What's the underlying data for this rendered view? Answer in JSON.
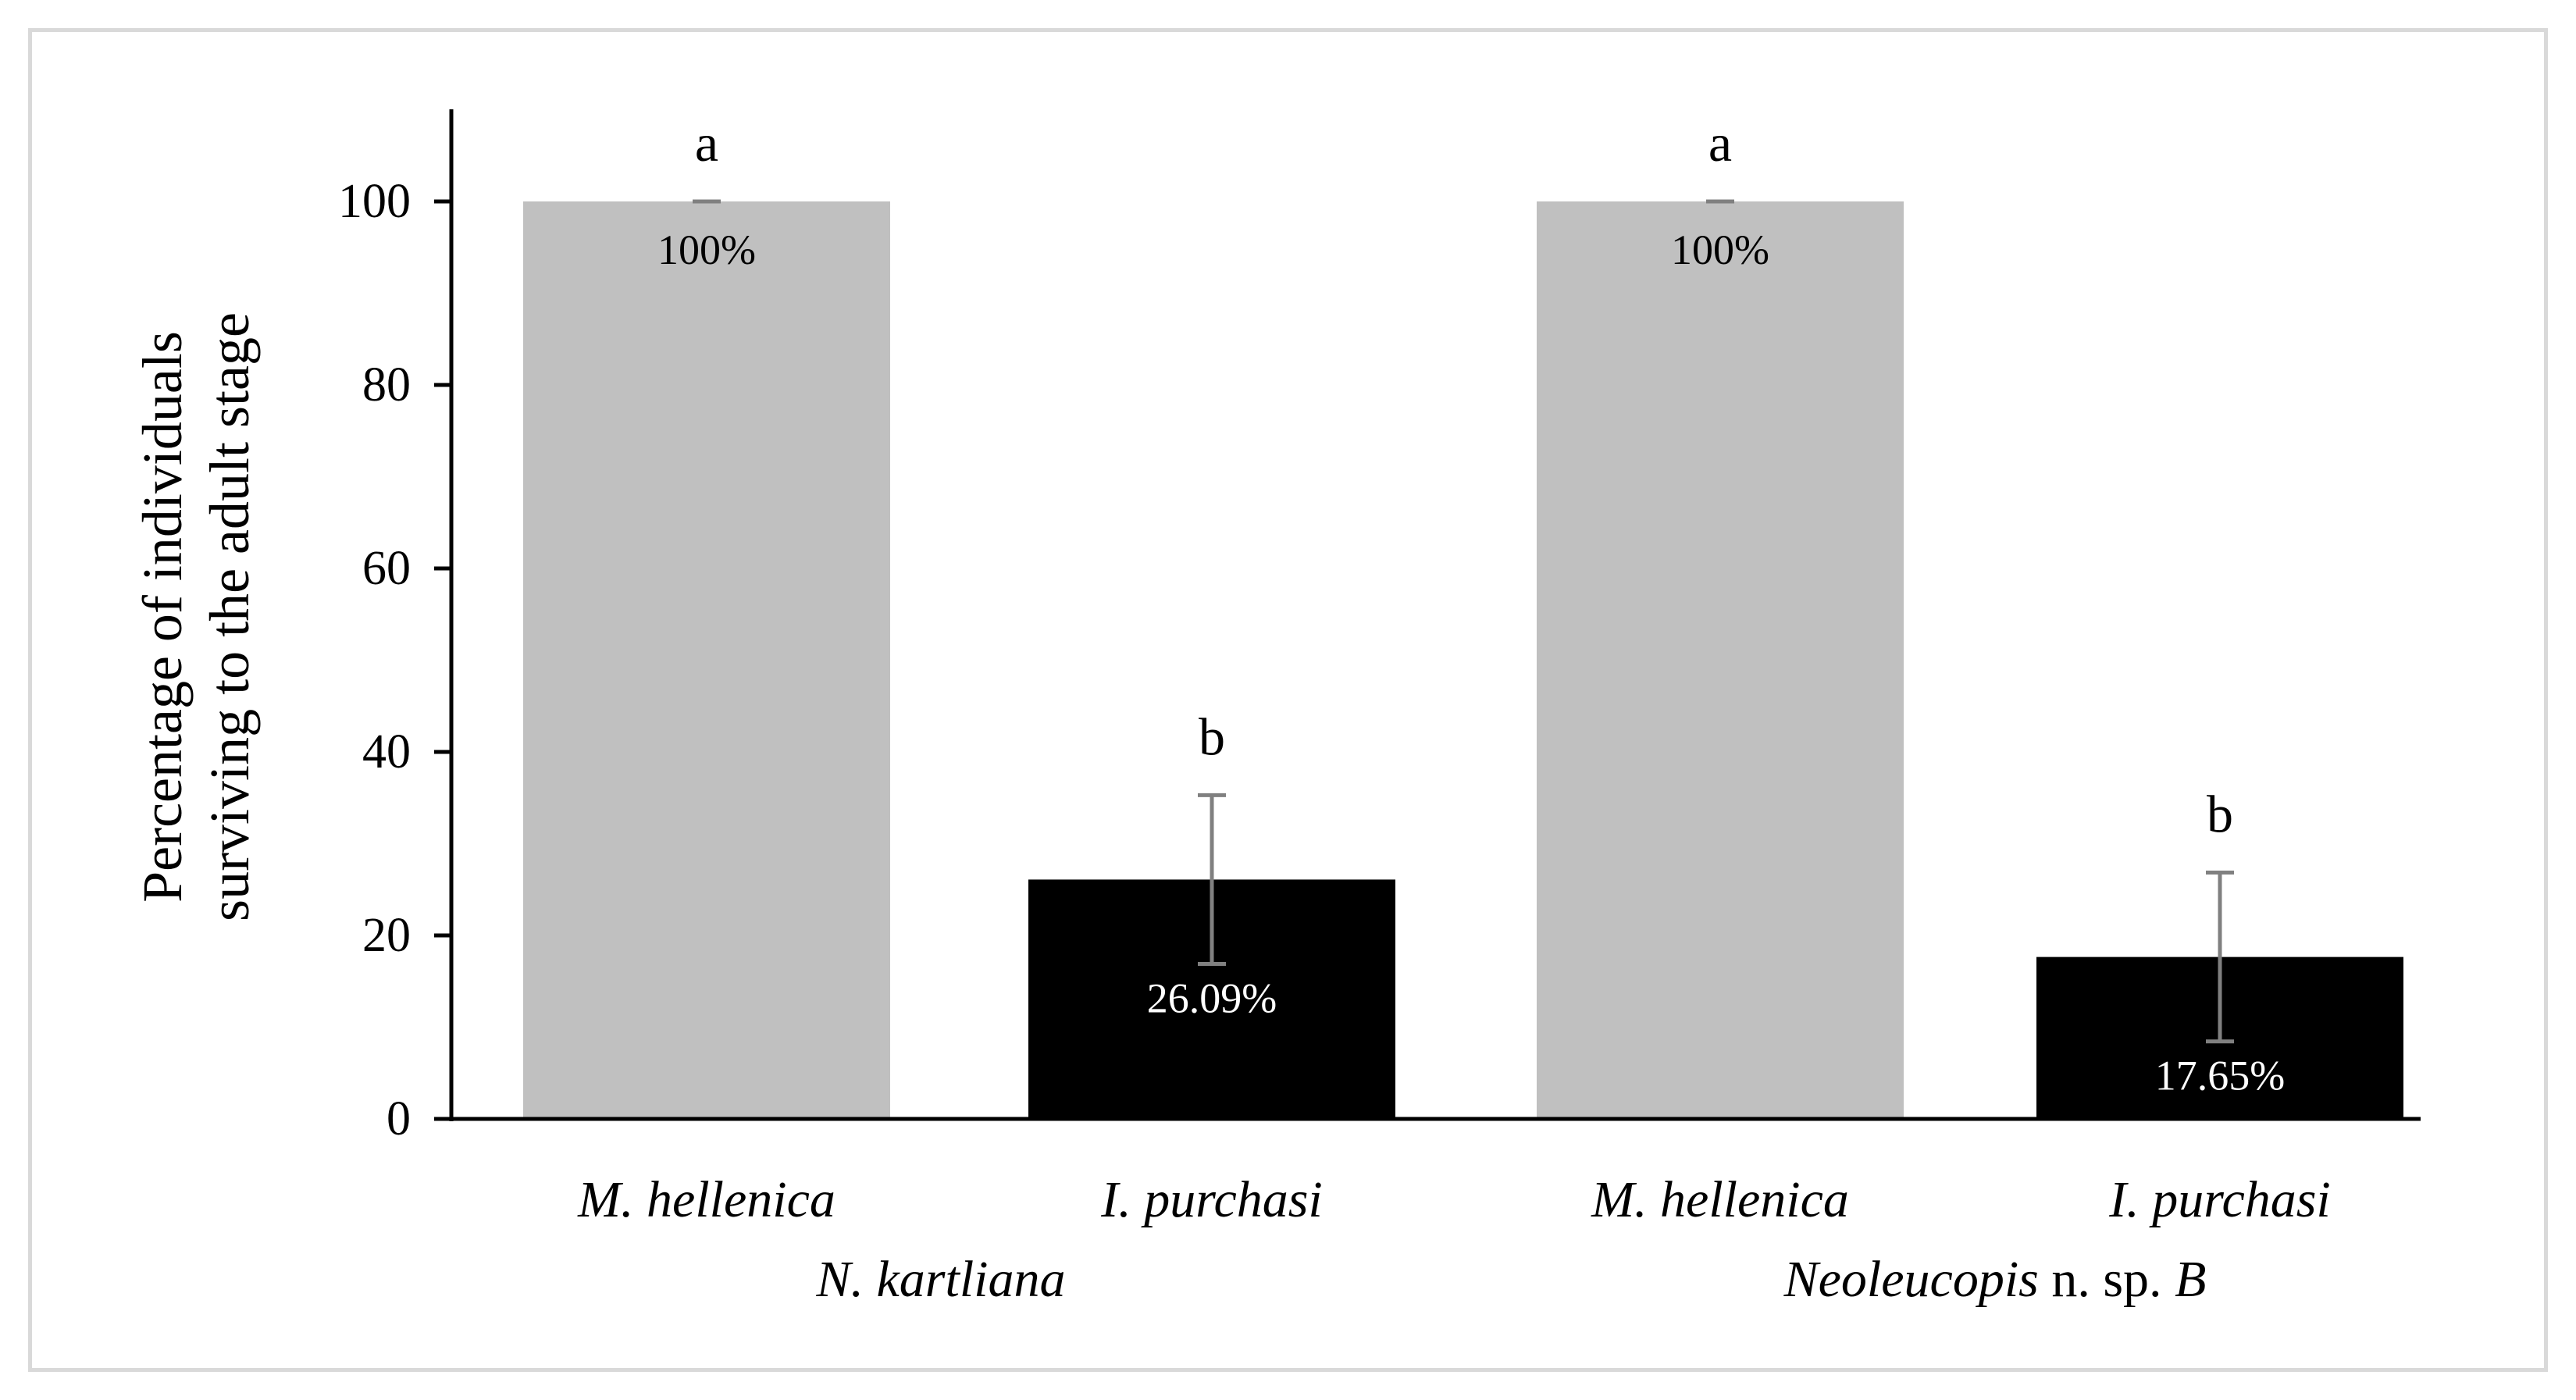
{
  "chart_data": {
    "type": "bar",
    "ylabel_lines": [
      "Percentage of individuals",
      "surviving to the adult stage"
    ],
    "ylim": [
      0,
      110
    ],
    "yticks": [
      0,
      20,
      40,
      60,
      80,
      100
    ],
    "grid": false,
    "groups": [
      {
        "label": [
          {
            "text": "N. kartliana",
            "italic": true
          }
        ],
        "bars": [
          {
            "category": "M. hellenica",
            "value": 100,
            "error": 0,
            "data_label": "100%",
            "letter": "a",
            "color": "#c0c0c0",
            "label_color": "#000000"
          },
          {
            "category": "I. purchasi",
            "value": 26.09,
            "error": 9.2,
            "data_label": "26.09%",
            "letter": "b",
            "color": "#000000",
            "label_color": "#ffffff"
          }
        ]
      },
      {
        "label": [
          {
            "text": "Neoleucopis",
            "italic": true
          },
          {
            "text": " n. sp. ",
            "italic": false
          },
          {
            "text": "B",
            "italic": true
          }
        ],
        "bars": [
          {
            "category": "M. hellenica",
            "value": 100,
            "error": 0,
            "data_label": "100%",
            "letter": "a",
            "color": "#c0c0c0",
            "label_color": "#000000"
          },
          {
            "category": "I. purchasi",
            "value": 17.65,
            "error": 9.2,
            "data_label": "17.65%",
            "letter": "b",
            "color": "#000000",
            "label_color": "#ffffff"
          }
        ]
      }
    ],
    "error_bar_color": "#808080"
  }
}
